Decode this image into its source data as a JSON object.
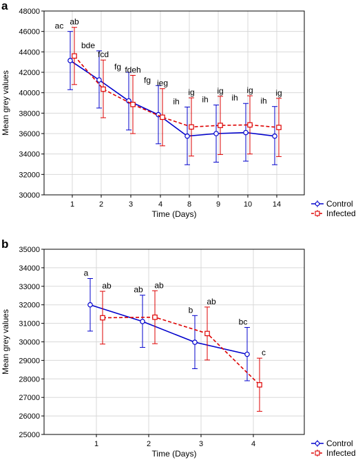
{
  "chart_data": [
    {
      "panel": "a",
      "type": "line",
      "xlabel": "Time (Days)",
      "ylabel": "Mean grey values",
      "ylim": [
        30000,
        48000
      ],
      "yticks": [
        30000,
        32000,
        34000,
        36000,
        38000,
        40000,
        42000,
        44000,
        46000,
        48000
      ],
      "categories": [
        "1",
        "2",
        "3",
        "4",
        "8",
        "9",
        "10",
        "14"
      ],
      "grid": true,
      "legend_position": "bottom-right",
      "series": [
        {
          "name": "Control",
          "color": "#0000cc",
          "line_style": "solid",
          "marker": "circle",
          "values": [
            43150,
            41250,
            39200,
            37850,
            35750,
            36000,
            36100,
            35750
          ],
          "err_low": [
            40300,
            38500,
            36350,
            35000,
            32950,
            33200,
            33300,
            32950
          ],
          "err_high": [
            46000,
            44100,
            42000,
            40700,
            38600,
            38800,
            38950,
            38650
          ],
          "letters": [
            "ac",
            "bde",
            "fg",
            "fg",
            "ih",
            "ih",
            "ih",
            "ih"
          ]
        },
        {
          "name": "Infected",
          "color": "#dd0000",
          "line_style": "dashed",
          "marker": "square",
          "values": [
            43600,
            40350,
            38850,
            37600,
            36650,
            36800,
            36850,
            36600
          ],
          "err_low": [
            40800,
            37550,
            36000,
            34800,
            33800,
            33950,
            34000,
            33750
          ],
          "err_high": [
            46400,
            43200,
            41700,
            40400,
            39500,
            39650,
            39700,
            39450
          ],
          "letters": [
            "ab",
            "fcd",
            "fdeh",
            "ieg",
            "ig",
            "ig",
            "ig",
            "ig"
          ]
        }
      ]
    },
    {
      "panel": "b",
      "type": "line",
      "xlabel": "Time (Days)",
      "ylabel": "Mean grey values",
      "ylim": [
        25000,
        35000
      ],
      "yticks": [
        25000,
        26000,
        27000,
        28000,
        29000,
        30000,
        31000,
        32000,
        33000,
        34000,
        35000
      ],
      "categories": [
        "1",
        "2",
        "3",
        "4"
      ],
      "grid": true,
      "legend_position": "bottom-right",
      "series": [
        {
          "name": "Control",
          "color": "#0000cc",
          "line_style": "solid",
          "marker": "circle",
          "values": [
            32000,
            31100,
            29980,
            29330
          ],
          "err_low": [
            30580,
            29700,
            28550,
            27900
          ],
          "err_high": [
            33420,
            32520,
            31420,
            30780
          ],
          "letters": [
            "a",
            "ab",
            "b",
            "bc"
          ]
        },
        {
          "name": "Infected",
          "color": "#dd0000",
          "line_style": "dashed",
          "marker": "square",
          "values": [
            31300,
            31330,
            30450,
            27680
          ],
          "err_low": [
            29880,
            29900,
            29020,
            26250
          ],
          "err_high": [
            32730,
            32760,
            31880,
            29120
          ],
          "letters": [
            "ab",
            "ab",
            "ab",
            "c"
          ]
        }
      ]
    }
  ]
}
